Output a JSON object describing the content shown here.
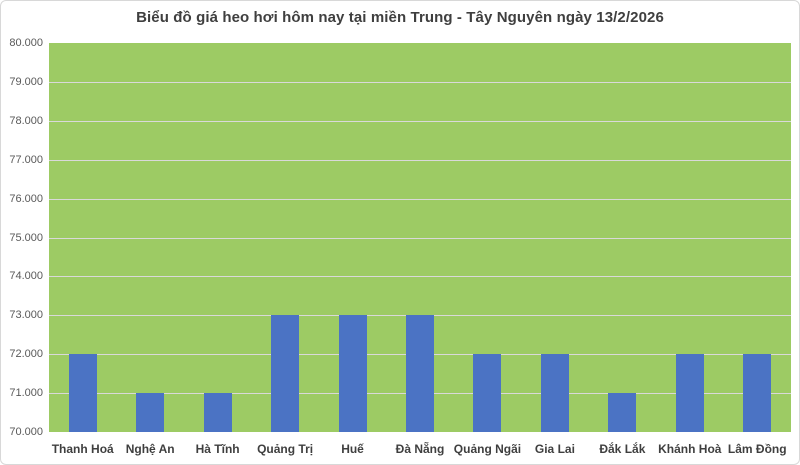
{
  "colors": {
    "bar": "#4b73c4",
    "plot_bg": "#9dcb64",
    "gridline": "#d9d9d9",
    "title_text": "#3f3f3f",
    "axis_text": "#595959",
    "border": "#d8d8d8"
  },
  "chart_data": {
    "type": "bar",
    "title": "Biểu đồ giá heo hơi hôm nay tại miền Trung - Tây Nguyên ngày 13/2/2026",
    "categories": [
      "Thanh Hoá",
      "Nghệ An",
      "Hà Tĩnh",
      "Quảng Trị",
      "Huế",
      "Đà Nẵng",
      "Quảng Ngãi",
      "Gia Lai",
      "Đắk Lắk",
      "Khánh Hoà",
      "Lâm Đồng"
    ],
    "values": [
      72000,
      71000,
      71000,
      73000,
      73000,
      73000,
      72000,
      72000,
      71000,
      72000,
      72000
    ],
    "xlabel": "",
    "ylabel": "",
    "ylim": [
      70000,
      80000
    ],
    "ytick_step": 1000,
    "ytick_label_format": "thousands-dot",
    "grid": true,
    "legend": false,
    "plot_bg_color": "#9dcb64",
    "bar_color": "#4b73c4"
  }
}
